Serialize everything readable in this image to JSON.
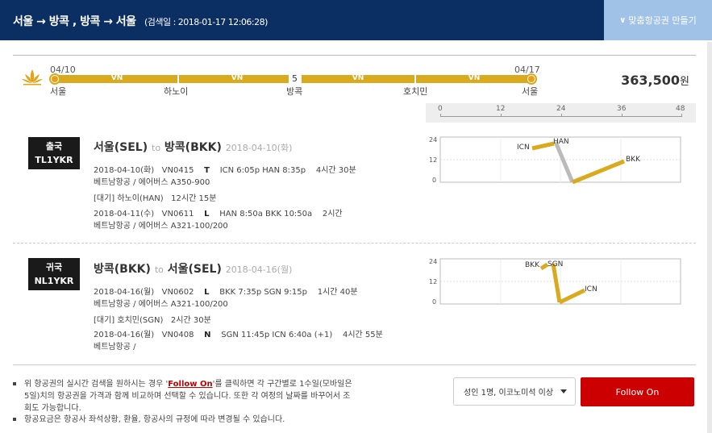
{
  "header": {
    "route": "서울 → 방콕 , 방콕 → 서울",
    "searched": "(검색일 : 2018-01-17 12:06:28)",
    "custom_button": "맞춤항공권 만들기"
  },
  "summary": {
    "start_date": "04/10",
    "end_date": "04/17",
    "stop_count": "5",
    "carriers": [
      "VN",
      "VN",
      "VN",
      "VN"
    ],
    "cities": [
      "서울",
      "하노이",
      "방콕",
      "호치민",
      "서울"
    ],
    "price": "363,500",
    "price_unit": "원"
  },
  "scale": {
    "ticks": [
      "0",
      "12",
      "24",
      "36",
      "48"
    ]
  },
  "outbound": {
    "direction": "출국",
    "code": "TL1YKR",
    "from": "서울(SEL)",
    "to_word": "to",
    "to": "방콕(BKK)",
    "date": "2018-04-10(화)",
    "seg1": {
      "date": "2018-04-10(화)",
      "flight": "VN0415",
      "class": "T",
      "times": "ICN 6:05p HAN 8:35p",
      "duration": "4시간 30분",
      "aircraft": "베트남항공 / 에어버스 A350-900"
    },
    "wait": {
      "label": "[대기] 하노이(HAN)",
      "time": "12시간 15분"
    },
    "seg2": {
      "date": "2018-04-11(수)",
      "flight": "VN0611",
      "class": "L",
      "times": "HAN 8:50a BKK 10:50a",
      "duration": "2시간",
      "aircraft": "베트남항공 / 에어버스 A321-100/200"
    },
    "chart": {
      "y_ticks": [
        "24",
        "12",
        "0"
      ],
      "labels": [
        "ICN",
        "HAN",
        "BKK"
      ]
    }
  },
  "inbound": {
    "direction": "귀국",
    "code": "NL1YKR",
    "from": "방콕(BKK)",
    "to_word": "to",
    "to": "서울(SEL)",
    "date": "2018-04-16(월)",
    "seg1": {
      "date": "2018-04-16(월)",
      "flight": "VN0602",
      "class": "L",
      "times": "BKK 7:35p SGN 9:15p",
      "duration": "1시간 40분",
      "aircraft": "베트남항공 / 에어버스 A321-100/200"
    },
    "wait": {
      "label": "[대기] 호치민(SGN)",
      "time": "2시간 30분"
    },
    "seg2": {
      "date": "2018-04-16(월)",
      "flight": "VN0408",
      "class": "N",
      "times": "SGN 11:45p ICN 6:40a (+1)",
      "duration": "4시간 55분",
      "aircraft": "베트남항공 /"
    },
    "chart": {
      "y_ticks": [
        "24",
        "12",
        "0"
      ],
      "labels": [
        "BKK",
        "SGN",
        "ICN"
      ]
    }
  },
  "footer": {
    "note1_pre": "위 항공권의 실시간 검색을 원하시는 경우 '",
    "note1_link": "Follow On",
    "note1_post_l1": "'를 클릭하면 각 구간별로 1수일(모바일은",
    "note1_l2": "5일)치의 항공권을 가격과 함께 비교하며 선택할 수 있습니다. 또한 각 여정의 날짜를 바꾸어서 조",
    "note1_l3": "회도 가능합니다.",
    "note2": "항공요금은 항공사 좌석상황, 환율, 항공사의 규정에 따라 변경될 수 있습니다.",
    "passenger_select": "성인 1명, 이코노미석 이상",
    "follow_button": "Follow On"
  },
  "colors": {
    "header_bg": "#0b2e63",
    "accent_gold": "#d9aa1e",
    "follow_red": "#cc0000",
    "custom_btn": "#9fc2e6"
  }
}
